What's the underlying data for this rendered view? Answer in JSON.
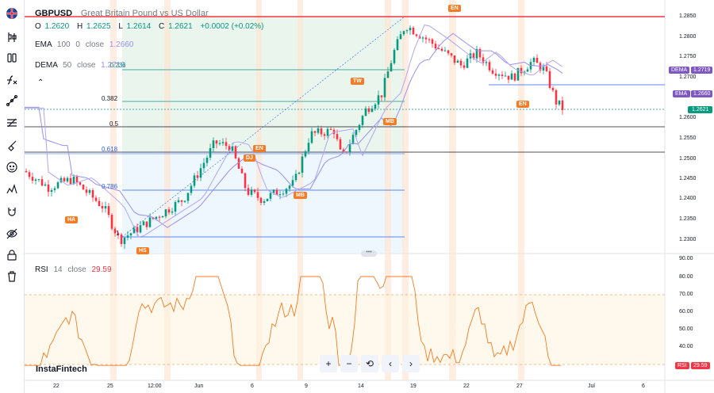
{
  "symbol": {
    "ticker": "GBPUSD",
    "description": "Great Britain Pound vs US Dollar",
    "flag_label": "GB"
  },
  "ohlc": {
    "o_label": "O",
    "o": "1.2620",
    "h_label": "H",
    "h": "1.2625",
    "l_label": "L",
    "l": "1.2614",
    "c_label": "C",
    "c": "1.2621",
    "change": "+0.0002 (+0.02%)"
  },
  "indicators": {
    "ema": {
      "name": "EMA",
      "period": "100",
      "offset": "0",
      "source": "close",
      "value": "1.2660"
    },
    "dema": {
      "name": "DEMA",
      "period": "50",
      "source": "close",
      "value": "1.2719",
      "overlap_text": "0.236"
    }
  },
  "price_axis": {
    "ticks": [
      "1.2850",
      "1.2800",
      "1.2750",
      "1.2700",
      "1.2650",
      "1.2600",
      "1.2550",
      "1.2500",
      "1.2450",
      "1.2400",
      "1.2350",
      "1.2300"
    ],
    "tags": {
      "dema_label": "DEMA",
      "dema_value": "1.2719",
      "ema_label": "EMA",
      "ema_value": "1.2660",
      "price_value": "1.2621"
    }
  },
  "fib_levels": [
    {
      "label": "0.382"
    },
    {
      "label": "0.5"
    },
    {
      "label": "0.618"
    },
    {
      "label": "0.786"
    },
    {
      "label": "1"
    }
  ],
  "markers": [
    {
      "text": "HA"
    },
    {
      "text": "HS"
    },
    {
      "text": "DJ"
    },
    {
      "text": "EN"
    },
    {
      "text": "MB"
    },
    {
      "text": "TW"
    },
    {
      "text": "MB"
    },
    {
      "text": "EN"
    },
    {
      "text": "EN"
    }
  ],
  "rsi": {
    "name": "RSI",
    "period": "14",
    "source": "close",
    "value": "29.59",
    "axis_ticks": [
      "90.00",
      "80.00",
      "70.00",
      "60.00",
      "50.00",
      "40.00"
    ],
    "tag_label": "RSI",
    "tag_value": "29.59"
  },
  "time_axis": [
    "22",
    "25",
    "12:00",
    "Jun",
    "6",
    "9",
    "14",
    "19",
    "22",
    "27",
    "Jul",
    "6"
  ],
  "watermark": "InstaFintech",
  "zoom_controls": {
    "zoom_in": "+",
    "zoom_out": "−",
    "reset": "⟲",
    "left": "‹",
    "right": "›"
  },
  "colors": {
    "up": "#089981",
    "down": "#f23645",
    "ema": "#9c8ef0",
    "dema": "#9c8ef0",
    "fib": "#2962ff",
    "marker": "#f57c24",
    "rsi": "#f57c24",
    "price_line": "#089981"
  }
}
